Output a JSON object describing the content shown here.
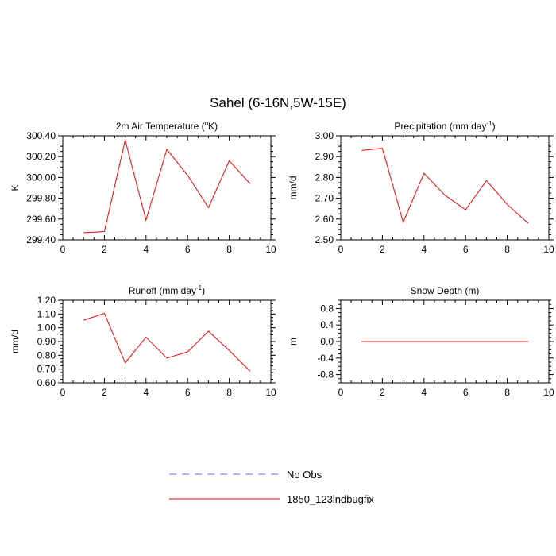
{
  "figure": {
    "title": "Sahel (6-16N,5W-15E)"
  },
  "colors": {
    "series_line": "#ff0000",
    "no_obs_line": "#6666ff",
    "axis": "#000000"
  },
  "legend": {
    "placement": "bottom-center",
    "entries": [
      {
        "label": "No Obs",
        "style": "dashed",
        "color": "#6666ff"
      },
      {
        "label": "1850_123lndbugfix",
        "style": "solid",
        "color": "#ff0000"
      }
    ]
  },
  "chart_data": [
    {
      "type": "line",
      "title_main": "2m Air Temperature (",
      "title_sup": "o",
      "title_end": "K)",
      "xlabel": "",
      "ylabel": "K",
      "xlim": [
        0,
        10
      ],
      "ylim": [
        299.4,
        300.4
      ],
      "xticks": [
        0,
        2,
        4,
        6,
        8,
        10
      ],
      "yticks": [
        299.4,
        299.6,
        299.8,
        300.0,
        300.2,
        300.4
      ],
      "yticklabels": [
        "299.40",
        "299.60",
        "299.80",
        "300.00",
        "300.20",
        "300.40"
      ],
      "yminor": 0.05,
      "grid": false,
      "series": [
        {
          "x": [
            1,
            2,
            3,
            4,
            5,
            6,
            7,
            8,
            9
          ],
          "values": [
            299.47,
            299.48,
            300.36,
            299.59,
            300.27,
            300.02,
            299.71,
            300.16,
            299.94
          ]
        }
      ]
    },
    {
      "type": "line",
      "title_main": "Precipitation (mm day",
      "title_sup": "-1",
      "title_end": ")",
      "xlabel": "",
      "ylabel": "mm/d",
      "xlim": [
        0,
        10
      ],
      "ylim": [
        2.5,
        3.0
      ],
      "xticks": [
        0,
        2,
        4,
        6,
        8,
        10
      ],
      "yticks": [
        2.5,
        2.6,
        2.7,
        2.8,
        2.9,
        3.0
      ],
      "yticklabels": [
        "2.50",
        "2.60",
        "2.70",
        "2.80",
        "2.90",
        "3.00"
      ],
      "yminor": 0.025,
      "grid": false,
      "series": [
        {
          "x": [
            1,
            2,
            3,
            4,
            5,
            6,
            7,
            8,
            9
          ],
          "values": [
            2.93,
            2.94,
            2.585,
            2.82,
            2.715,
            2.645,
            2.785,
            2.67,
            2.58
          ]
        }
      ]
    },
    {
      "type": "line",
      "title_main": "Runoff (mm day",
      "title_sup": "-1",
      "title_end": ")",
      "xlabel": "",
      "ylabel": "mm/d",
      "xlim": [
        0,
        10
      ],
      "ylim": [
        0.6,
        1.2
      ],
      "xticks": [
        0,
        2,
        4,
        6,
        8,
        10
      ],
      "yticks": [
        0.6,
        0.7,
        0.8,
        0.9,
        1.0,
        1.1,
        1.2
      ],
      "yticklabels": [
        "0.60",
        "0.70",
        "0.80",
        "0.90",
        "1.00",
        "1.10",
        "1.20"
      ],
      "yminor": 0.025,
      "grid": false,
      "series": [
        {
          "x": [
            1,
            2,
            3,
            4,
            5,
            6,
            7,
            8,
            9
          ],
          "values": [
            1.055,
            1.105,
            0.745,
            0.932,
            0.78,
            0.825,
            0.975,
            0.835,
            0.685
          ]
        }
      ]
    },
    {
      "type": "line",
      "title_main": "Snow Depth (m)",
      "title_sup": "",
      "title_end": "",
      "xlabel": "",
      "ylabel": "m",
      "xlim": [
        0,
        10
      ],
      "ylim": [
        -1.0,
        1.0
      ],
      "xticks": [
        0,
        2,
        4,
        6,
        8,
        10
      ],
      "yticks": [
        -0.8,
        -0.4,
        0.0,
        0.4,
        0.8
      ],
      "yticklabels": [
        "-0.8",
        "-0.4",
        "0.0",
        "0.4",
        "0.8"
      ],
      "yminor": 0.1,
      "grid": false,
      "series": [
        {
          "x": [
            1,
            2,
            3,
            4,
            5,
            6,
            7,
            8,
            9
          ],
          "values": [
            0,
            0,
            0,
            0,
            0,
            0,
            0,
            0,
            0
          ]
        }
      ]
    }
  ]
}
